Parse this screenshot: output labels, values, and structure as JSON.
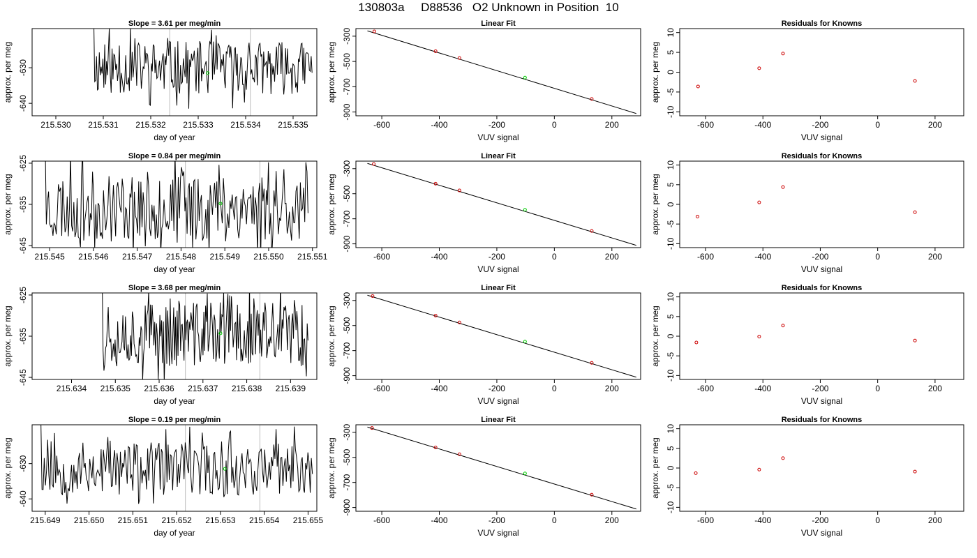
{
  "page_title": "130803a     D88536   O2 Unknown in Position  10",
  "colors": {
    "line": "#000000",
    "known_points": "#cc0000",
    "unknown_point": "#00cc00",
    "marker_lines": "#bbbbbb",
    "axes": "#000000"
  },
  "chart_data": [
    {
      "panel": "timeseries-row-1",
      "type": "line",
      "title": "Slope =  3.61  per meg/min",
      "xlabel": "day of year",
      "ylabel": "approx. per meg",
      "xlim": [
        215.5295,
        215.5355
      ],
      "ylim": [
        -643.5,
        -619
      ],
      "xticks": [
        215.53,
        215.531,
        215.532,
        215.533,
        215.534,
        215.535
      ],
      "xtick_labels": [
        "215.530",
        "215.531",
        "215.532",
        "215.533",
        "215.534",
        "215.535"
      ],
      "yticks": [
        -630,
        -640
      ],
      "ytick_labels": [
        "-630",
        "-640"
      ],
      "vlines": [
        215.5324,
        215.5341
      ],
      "x_start": 215.5308,
      "x_end": 215.5354,
      "y_center": -630,
      "y_amp": 7.5,
      "seed": 11,
      "unknown_point": {
        "x": 215.5332,
        "y": -631.5
      }
    },
    {
      "panel": "fit-row-1",
      "type": "scatter",
      "title": "Linear Fit",
      "xlabel": "VUV signal",
      "ylabel": "approx. per meg",
      "xlim": [
        -690,
        300
      ],
      "ylim": [
        -930,
        -240
      ],
      "xticks": [
        -600,
        -400,
        -200,
        0,
        200
      ],
      "xtick_labels": [
        "-600",
        "-400",
        "-200",
        "0",
        "200"
      ],
      "yticks": [
        -300,
        -500,
        -700,
        -900
      ],
      "ytick_labels": [
        "-300",
        "-500",
        "-700",
        "-900"
      ],
      "fit_line": {
        "x": [
          -650,
          285
        ],
        "y": [
          -258,
          -912
        ]
      },
      "known_points": {
        "x": [
          -626,
          -413,
          -330,
          130
        ],
        "y": [
          -262,
          -419,
          -473,
          -797
        ]
      },
      "unknown_point": {
        "x": -102,
        "y": -628
      }
    },
    {
      "panel": "residuals-row-1",
      "type": "scatter",
      "title": "Residuals for Knowns",
      "xlabel": "VUV signal",
      "ylabel": "approx. per meg",
      "xlim": [
        -690,
        300
      ],
      "ylim": [
        -11,
        11
      ],
      "xticks": [
        -600,
        -400,
        -200,
        0,
        200
      ],
      "xtick_labels": [
        "-600",
        "-400",
        "-200",
        "0",
        "200"
      ],
      "yticks": [
        10,
        5,
        0,
        -5,
        -10
      ],
      "ytick_labels": [
        "10",
        "5",
        "0",
        "-5",
        "-10"
      ],
      "known_points": {
        "x": [
          -626,
          -413,
          -330,
          130
        ],
        "y": [
          -3.6,
          1.0,
          4.7,
          -2.2
        ]
      }
    },
    {
      "panel": "timeseries-row-2",
      "type": "line",
      "title": "Slope =  0.84  per meg/min",
      "xlabel": "day of year",
      "ylabel": "approx. per meg",
      "xlim": [
        215.5446,
        215.5511
      ],
      "ylim": [
        -645.5,
        -624.5
      ],
      "xticks": [
        215.545,
        215.546,
        215.547,
        215.548,
        215.549,
        215.55,
        215.551
      ],
      "xtick_labels": [
        "215.545",
        "215.546",
        "215.547",
        "215.548",
        "215.549",
        "215.550",
        "215.551"
      ],
      "yticks": [
        -625,
        -635,
        -645
      ],
      "ytick_labels": [
        "-625",
        "-635",
        "-645"
      ],
      "vlines": [
        215.5481,
        215.5498
      ],
      "x_start": 215.5449,
      "x_end": 215.5509,
      "y_center": -635.5,
      "y_amp": 8.5,
      "seed": 23,
      "unknown_point": {
        "x": 215.5489,
        "y": -634.8
      }
    },
    {
      "panel": "fit-row-2",
      "type": "scatter",
      "title": "Linear Fit",
      "xlabel": "VUV signal",
      "ylabel": "approx. per meg",
      "xlim": [
        -690,
        300
      ],
      "ylim": [
        -930,
        -240
      ],
      "xticks": [
        -600,
        -400,
        -200,
        0,
        200
      ],
      "xtick_labels": [
        "-600",
        "-400",
        "-200",
        "0",
        "200"
      ],
      "yticks": [
        -300,
        -500,
        -700,
        -900
      ],
      "ytick_labels": [
        "-300",
        "-500",
        "-700",
        "-900"
      ],
      "fit_line": {
        "x": [
          -650,
          285
        ],
        "y": [
          -258,
          -912
        ]
      },
      "known_points": {
        "x": [
          -628,
          -413,
          -330,
          130
        ],
        "y": [
          -263,
          -420,
          -474,
          -797
        ]
      },
      "unknown_point": {
        "x": -102,
        "y": -628
      }
    },
    {
      "panel": "residuals-row-2",
      "type": "scatter",
      "title": "Residuals for Knowns",
      "xlabel": "VUV signal",
      "ylabel": "approx. per meg",
      "xlim": [
        -690,
        300
      ],
      "ylim": [
        -11,
        11
      ],
      "xticks": [
        -600,
        -400,
        -200,
        0,
        200
      ],
      "xtick_labels": [
        "-600",
        "-400",
        "-200",
        "0",
        "200"
      ],
      "yticks": [
        10,
        5,
        0,
        -5,
        -10
      ],
      "ytick_labels": [
        "10",
        "5",
        "0",
        "-5",
        "-10"
      ],
      "known_points": {
        "x": [
          -628,
          -413,
          -330,
          130
        ],
        "y": [
          -3.1,
          0.5,
          4.4,
          -2.0
        ]
      }
    },
    {
      "panel": "timeseries-row-3",
      "type": "line",
      "title": "Slope =  3.68  per meg/min",
      "xlabel": "day of year",
      "ylabel": "approx. per meg",
      "xlim": [
        215.6331,
        215.6396
      ],
      "ylim": [
        -645.5,
        -624.5
      ],
      "xticks": [
        215.634,
        215.635,
        215.636,
        215.637,
        215.638,
        215.639
      ],
      "xtick_labels": [
        "215.634",
        "215.635",
        "215.636",
        "215.637",
        "215.638",
        "215.639"
      ],
      "yticks": [
        -625,
        -635,
        -645
      ],
      "ytick_labels": [
        "-625",
        "-635",
        "-645"
      ],
      "vlines": [
        215.6366,
        215.6383
      ],
      "x_start": 215.6347,
      "x_end": 215.6394,
      "y_center": -634.5,
      "y_amp": 8,
      "seed": 37,
      "unknown_point": {
        "x": 215.6374,
        "y": -634.3
      }
    },
    {
      "panel": "fit-row-3",
      "type": "scatter",
      "title": "Linear Fit",
      "xlabel": "VUV signal",
      "ylabel": "approx. per meg",
      "xlim": [
        -690,
        300
      ],
      "ylim": [
        -930,
        -240
      ],
      "xticks": [
        -600,
        -400,
        -200,
        0,
        200
      ],
      "xtick_labels": [
        "-600",
        "-400",
        "-200",
        "0",
        "200"
      ],
      "yticks": [
        -300,
        -500,
        -700,
        -900
      ],
      "ytick_labels": [
        "-300",
        "-500",
        "-700",
        "-900"
      ],
      "fit_line": {
        "x": [
          -650,
          285
        ],
        "y": [
          -258,
          -912
        ]
      },
      "known_points": {
        "x": [
          -632,
          -413,
          -330,
          130
        ],
        "y": [
          -265,
          -421,
          -475,
          -798
        ]
      },
      "unknown_point": {
        "x": -102,
        "y": -628
      }
    },
    {
      "panel": "residuals-row-3",
      "type": "scatter",
      "title": "Residuals for Knowns",
      "xlabel": "VUV signal",
      "ylabel": "approx. per meg",
      "xlim": [
        -690,
        300
      ],
      "ylim": [
        -11,
        11
      ],
      "xticks": [
        -600,
        -400,
        -200,
        0,
        200
      ],
      "xtick_labels": [
        "-600",
        "-400",
        "-200",
        "0",
        "200"
      ],
      "yticks": [
        10,
        5,
        0,
        -5,
        -10
      ],
      "ytick_labels": [
        "10",
        "5",
        "0",
        "-5",
        "-10"
      ],
      "known_points": {
        "x": [
          -632,
          -413,
          -330,
          130
        ],
        "y": [
          -1.6,
          -0.1,
          2.7,
          -1.1
        ]
      }
    },
    {
      "panel": "timeseries-row-4",
      "type": "line",
      "title": "Slope =  0.19  per meg/min",
      "xlabel": "day of year",
      "ylabel": "approx. per meg",
      "xlim": [
        215.6487,
        215.6552
      ],
      "ylim": [
        -643.5,
        -619
      ],
      "xticks": [
        215.649,
        215.65,
        215.651,
        215.652,
        215.653,
        215.654,
        215.655
      ],
      "xtick_labels": [
        "215.649",
        "215.650",
        "215.651",
        "215.652",
        "215.653",
        "215.654",
        "215.655"
      ],
      "yticks": [
        -630,
        -640
      ],
      "ytick_labels": [
        "-630",
        "-640"
      ],
      "vlines": [
        215.6522,
        215.6539
      ],
      "x_start": 215.6489,
      "x_end": 215.6551,
      "y_center": -631.5,
      "y_amp": 7.5,
      "seed": 53,
      "unknown_point": {
        "x": 215.6531,
        "y": -631.5
      }
    },
    {
      "panel": "fit-row-4",
      "type": "scatter",
      "title": "Linear Fit",
      "xlabel": "VUV signal",
      "ylabel": "approx. per meg",
      "xlim": [
        -690,
        300
      ],
      "ylim": [
        -930,
        -240
      ],
      "xticks": [
        -600,
        -400,
        -200,
        0,
        200
      ],
      "xtick_labels": [
        "-600",
        "-400",
        "-200",
        "0",
        "200"
      ],
      "yticks": [
        -300,
        -500,
        -700,
        -900
      ],
      "ytick_labels": [
        "-300",
        "-500",
        "-700",
        "-900"
      ],
      "fit_line": {
        "x": [
          -650,
          285
        ],
        "y": [
          -258,
          -912
        ]
      },
      "known_points": {
        "x": [
          -634,
          -413,
          -330,
          130
        ],
        "y": [
          -266,
          -421,
          -475,
          -798
        ]
      },
      "unknown_point": {
        "x": -102,
        "y": -628
      }
    },
    {
      "panel": "residuals-row-4",
      "type": "scatter",
      "title": "Residuals for Knowns",
      "xlabel": "VUV signal",
      "ylabel": "approx. per meg",
      "xlim": [
        -690,
        300
      ],
      "ylim": [
        -11,
        11
      ],
      "xticks": [
        -600,
        -400,
        -200,
        0,
        200
      ],
      "xtick_labels": [
        "-600",
        "-400",
        "-200",
        "0",
        "200"
      ],
      "yticks": [
        10,
        5,
        0,
        -5,
        -10
      ],
      "ytick_labels": [
        "10",
        "5",
        "0",
        "-5",
        "-10"
      ],
      "known_points": {
        "x": [
          -634,
          -413,
          -330,
          130
        ],
        "y": [
          -1.3,
          -0.4,
          2.5,
          -0.9
        ]
      }
    }
  ]
}
